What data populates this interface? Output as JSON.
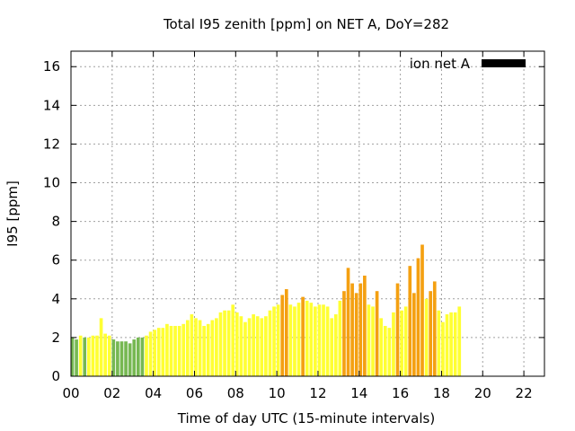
{
  "chart_data": {
    "type": "bar",
    "title": "Total I95 zenith [ppm] on NET A, DoY=282",
    "xlabel": "Time of day UTC (15-minute intervals)",
    "ylabel": "I95 [ppm]",
    "xlim": [
      0,
      23
    ],
    "ylim": [
      0,
      16.8
    ],
    "xticks": [
      0,
      2,
      4,
      6,
      8,
      10,
      12,
      14,
      16,
      18,
      20,
      22
    ],
    "xtick_labels": [
      "00",
      "02",
      "04",
      "06",
      "08",
      "10",
      "12",
      "14",
      "16",
      "18",
      "20",
      "22"
    ],
    "yticks": [
      0,
      2,
      4,
      6,
      8,
      10,
      12,
      14,
      16
    ],
    "ytick_labels": [
      "0",
      "2",
      "4",
      "6",
      "8",
      "10",
      "12",
      "14",
      "16"
    ],
    "grid": true,
    "legend": {
      "label": "ion net A",
      "color": "#000000",
      "placement": "top-right"
    },
    "bar_interval_hours": 0.2,
    "color_levels": {
      "green": "#76b852",
      "yellow": "#ffff33",
      "orange": "#f4a011"
    },
    "series": [
      {
        "values": [
          2.0,
          1.9,
          2.1,
          2.0,
          2.0,
          2.1,
          2.1,
          3.0,
          2.2,
          2.1,
          1.9,
          1.8,
          1.8,
          1.8,
          1.7,
          1.9,
          2.0,
          2.0,
          2.1,
          2.3,
          2.4,
          2.5,
          2.5,
          2.7,
          2.6,
          2.6,
          2.6,
          2.7,
          2.9,
          3.2,
          3.0,
          2.9,
          2.6,
          2.7,
          2.9,
          3.0,
          3.3,
          3.4,
          3.4,
          3.7,
          3.3,
          3.1,
          2.8,
          3.0,
          3.2,
          3.1,
          3.0,
          3.1,
          3.4,
          3.6,
          3.7,
          4.2,
          4.5,
          3.7,
          3.6,
          3.8,
          4.1,
          3.9,
          3.8,
          3.6,
          3.7,
          3.7,
          3.6,
          3.0,
          3.2,
          3.9,
          4.4,
          5.6,
          4.8,
          4.3,
          4.8,
          5.2,
          3.7,
          3.6,
          4.4,
          3.0,
          2.6,
          2.5,
          3.3,
          4.8,
          3.4,
          3.6,
          5.7,
          4.3,
          6.1,
          6.8,
          4.0,
          4.4,
          4.9,
          3.4,
          2.8,
          3.2,
          3.3,
          3.3,
          3.6
        ],
        "levels": [
          "green",
          "green",
          "yellow",
          "green",
          "yellow",
          "yellow",
          "yellow",
          "yellow",
          "yellow",
          "yellow",
          "green",
          "green",
          "green",
          "green",
          "green",
          "green",
          "green",
          "green",
          "yellow",
          "yellow",
          "yellow",
          "yellow",
          "yellow",
          "yellow",
          "yellow",
          "yellow",
          "yellow",
          "yellow",
          "yellow",
          "yellow",
          "yellow",
          "yellow",
          "yellow",
          "yellow",
          "yellow",
          "yellow",
          "yellow",
          "yellow",
          "yellow",
          "yellow",
          "yellow",
          "yellow",
          "yellow",
          "yellow",
          "yellow",
          "yellow",
          "yellow",
          "yellow",
          "yellow",
          "yellow",
          "yellow",
          "orange",
          "orange",
          "yellow",
          "yellow",
          "yellow",
          "orange",
          "yellow",
          "yellow",
          "yellow",
          "yellow",
          "yellow",
          "yellow",
          "yellow",
          "yellow",
          "yellow",
          "orange",
          "orange",
          "orange",
          "orange",
          "orange",
          "orange",
          "yellow",
          "yellow",
          "orange",
          "yellow",
          "yellow",
          "yellow",
          "yellow",
          "orange",
          "yellow",
          "yellow",
          "orange",
          "orange",
          "orange",
          "orange",
          "yellow",
          "orange",
          "orange",
          "yellow",
          "yellow",
          "yellow",
          "yellow",
          "yellow",
          "yellow"
        ]
      }
    ]
  }
}
